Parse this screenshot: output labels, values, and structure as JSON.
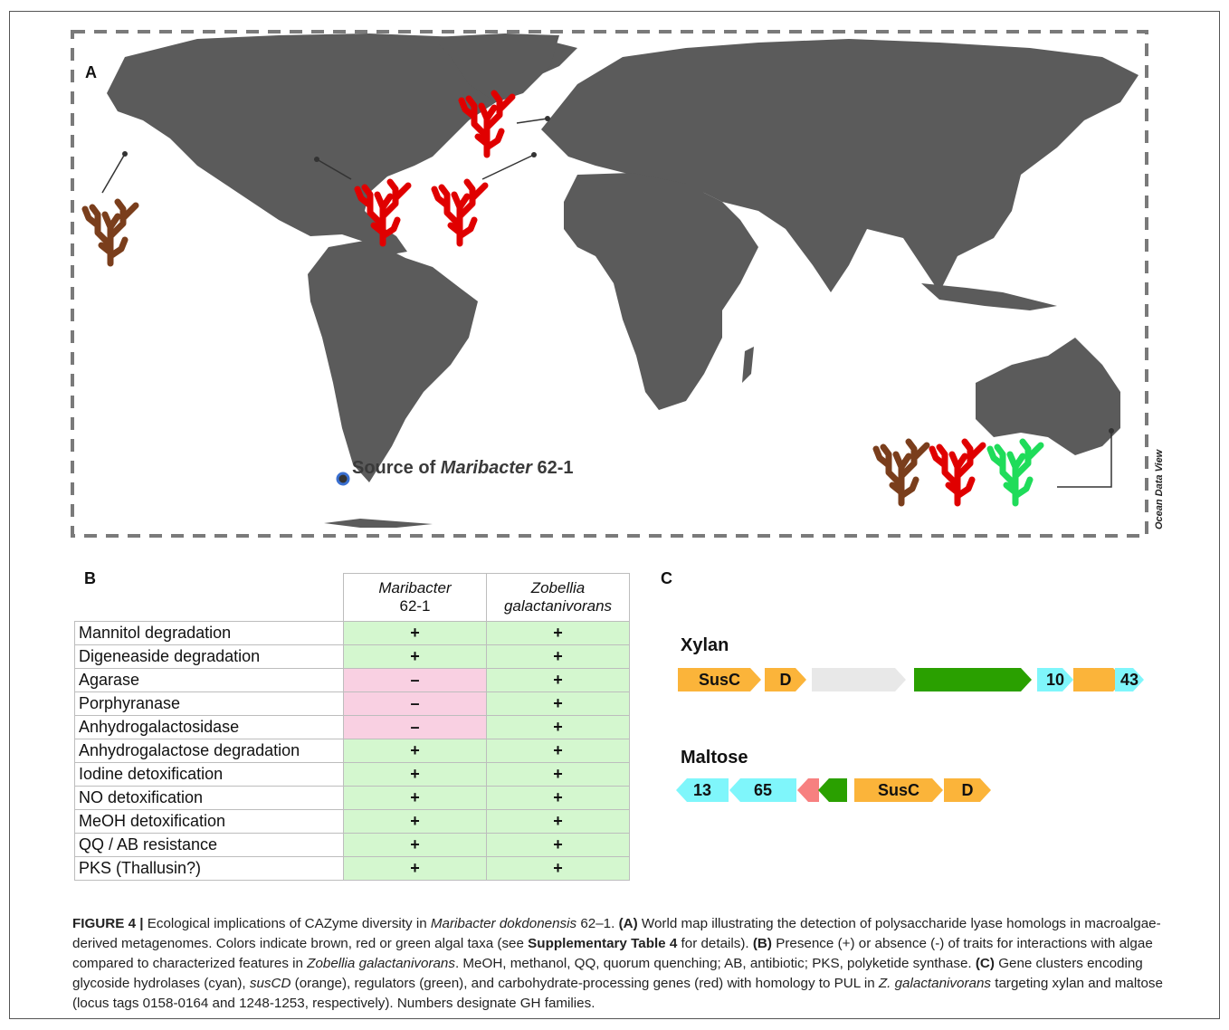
{
  "panels": {
    "a": "A",
    "b": "B",
    "c": "C"
  },
  "map": {
    "source_prefix": "Source of ",
    "source_italic": "Maribacter",
    "source_suffix": " 62-1",
    "credit": "Ocean Data View",
    "colors": {
      "land": "#5b5b5b",
      "brown_alga": "#7a3e1c",
      "red_alga": "#e00000",
      "green_alga": "#1fdc5a",
      "source_dot": "#3a6fd0"
    },
    "algae_markers": [
      "brown",
      "red",
      "red",
      "red",
      "brown",
      "red",
      "green"
    ]
  },
  "table": {
    "headers": [
      {
        "line1": "Maribacter",
        "line2": "62-1"
      },
      {
        "line1": "Zobellia",
        "line2": "galactanivorans"
      }
    ],
    "rows": [
      {
        "trait": "Mannitol degradation",
        "maribacter": "+",
        "zobellia": "+",
        "m_present": true
      },
      {
        "trait": "Digeneaside degradation",
        "maribacter": "+",
        "zobellia": "+",
        "m_present": true
      },
      {
        "trait": "Agarase",
        "maribacter": "–",
        "zobellia": "+",
        "m_present": false
      },
      {
        "trait": "Porphyranase",
        "maribacter": "–",
        "zobellia": "+",
        "m_present": false
      },
      {
        "trait": "Anhydrogalactosidase",
        "maribacter": "–",
        "zobellia": "+",
        "m_present": false
      },
      {
        "trait": "Anhydrogalactose degradation",
        "maribacter": "+",
        "zobellia": "+",
        "m_present": true
      },
      {
        "trait": "Iodine detoxification",
        "maribacter": "+",
        "zobellia": "+",
        "m_present": true
      },
      {
        "trait": "NO detoxification",
        "maribacter": "+",
        "zobellia": "+",
        "m_present": true
      },
      {
        "trait": "MeOH detoxification",
        "maribacter": "+",
        "zobellia": "+",
        "m_present": true
      },
      {
        "trait": "QQ / AB resistance",
        "maribacter": "+",
        "zobellia": "+",
        "m_present": true
      },
      {
        "trait": "PKS (Thallusin?)",
        "maribacter": "+",
        "zobellia": "+",
        "m_present": true
      }
    ]
  },
  "clusters": {
    "xylan": {
      "title": "Xylan",
      "genes": [
        {
          "label": "SusC",
          "color": "orange"
        },
        {
          "label": "D",
          "color": "orange"
        },
        {
          "label": "",
          "color": "grey"
        },
        {
          "label": "",
          "color": "green"
        },
        {
          "label": "10",
          "color": "cyan"
        },
        {
          "label": "",
          "color": "orange"
        },
        {
          "label": "43",
          "color": "cyan"
        }
      ]
    },
    "maltose": {
      "title": "Maltose",
      "genes": [
        {
          "label": "13",
          "color": "cyan"
        },
        {
          "label": "65",
          "color": "cyan"
        },
        {
          "label": "",
          "color": "red"
        },
        {
          "label": "",
          "color": "green"
        },
        {
          "label": "SusC",
          "color": "orange"
        },
        {
          "label": "D",
          "color": "orange"
        }
      ]
    }
  },
  "caption": {
    "fig_label": "FIGURE 4 |",
    "t1": " Ecological implications of CAZyme diversity in ",
    "t1_i": "Maribacter dokdonensis",
    "t2": " 62–1. ",
    "a_label": "(A)",
    "t3": " World map illustrating the detection of polysaccharide lyase homologs in macroalgae-derived metagenomes. Colors indicate brown, red or green algal taxa (see ",
    "supp": "Supplementary Table 4",
    "t4": " for details). ",
    "b_label": "(B)",
    "t5": " Presence (+) or absence (-) of traits for interactions with algae compared to characterized features in ",
    "t5_i": "Zobellia galactanivorans",
    "t6": ". MeOH, methanol, QQ, quorum quenching; AB, antibiotic; PKS, polyketide synthase. ",
    "c_label": "(C)",
    "t7": " Gene clusters encoding glycoside hydrolases (cyan), ",
    "t7_i": "susCD",
    "t8": " (orange), regulators (green), and carbohydrate-processing genes (red) with homology to PUL in ",
    "t8_i": "Z. galactanivorans",
    "t9": " targeting xylan and maltose (locus tags 0158-0164 and 1248-1253, respectively). Numbers designate GH families."
  }
}
